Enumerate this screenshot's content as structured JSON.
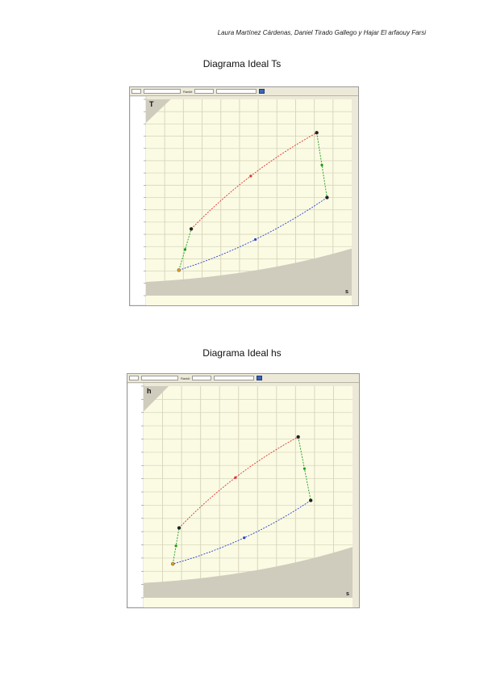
{
  "header": {
    "authors": "Laura Martínez Cárdenas, Daniel Tirado Gallego y Hajar El arfaouy Farsi"
  },
  "colors": {
    "heating": "#e03030",
    "cooling": "#2b3fd0",
    "compression": "#1a9a1a",
    "plot_bg": "#fbfbe4",
    "grid": "#d8d7bd",
    "region": "#cfccbd"
  },
  "figures": [
    {
      "title": "Diagrama Ideal Ts",
      "axis_y_symbol": "T",
      "axis_x_symbol": "s",
      "toolbar": {
        "button_label": "Rankit"
      },
      "chart_data": {
        "type": "line",
        "x": {
          "range": [
            0,
            1
          ]
        },
        "y": {
          "range": [
            0,
            1
          ]
        },
        "grid": true,
        "states": [
          {
            "id": 1,
            "x": 0.16,
            "y": 0.13
          },
          {
            "id": 2,
            "x": 0.22,
            "y": 0.34
          },
          {
            "id": 3,
            "x": 0.83,
            "y": 0.83
          },
          {
            "id": 4,
            "x": 0.88,
            "y": 0.5
          }
        ],
        "series": [
          {
            "color": "heating",
            "from": 2,
            "to": 3
          },
          {
            "color": "compression",
            "from": 3,
            "to": 4
          },
          {
            "color": "cooling",
            "from": 4,
            "to": 1
          },
          {
            "color": "compression",
            "from": 1,
            "to": 2
          }
        ]
      }
    },
    {
      "title": "Diagrama Ideal hs",
      "axis_y_symbol": "h",
      "axis_x_symbol": "s",
      "toolbar": {
        "button_label": "Rankit"
      },
      "chart_data": {
        "type": "line",
        "x": {
          "range": [
            0,
            1
          ]
        },
        "y": {
          "range": [
            0,
            1
          ]
        },
        "grid": true,
        "states": [
          {
            "id": 1,
            "x": 0.14,
            "y": 0.16
          },
          {
            "id": 2,
            "x": 0.17,
            "y": 0.33
          },
          {
            "id": 3,
            "x": 0.74,
            "y": 0.76
          },
          {
            "id": 4,
            "x": 0.8,
            "y": 0.46
          }
        ],
        "series": [
          {
            "color": "heating",
            "from": 2,
            "to": 3
          },
          {
            "color": "compression",
            "from": 3,
            "to": 4
          },
          {
            "color": "cooling",
            "from": 4,
            "to": 1
          },
          {
            "color": "compression",
            "from": 1,
            "to": 2
          }
        ]
      }
    }
  ]
}
